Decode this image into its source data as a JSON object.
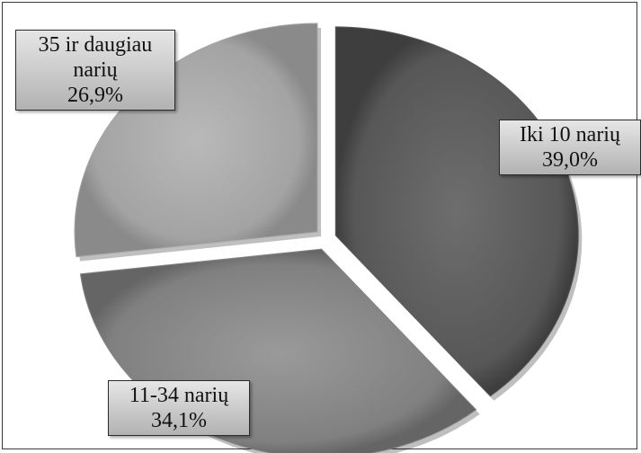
{
  "chart_data": {
    "type": "pie",
    "exploded": true,
    "shading": "3d-gradient",
    "slices": [
      {
        "label_lines": [
          "Iki 10 narių"
        ],
        "value_label": "39,0%",
        "value": 39.0,
        "color": "#5c5c5c"
      },
      {
        "label_lines": [
          "11-34 narių"
        ],
        "value_label": "34,1%",
        "value": 34.1,
        "color": "#858585"
      },
      {
        "label_lines": [
          "35 ir daugiau",
          "narių"
        ],
        "value_label": "26,9%",
        "value": 26.9,
        "color": "#a6a6a6"
      }
    ]
  }
}
